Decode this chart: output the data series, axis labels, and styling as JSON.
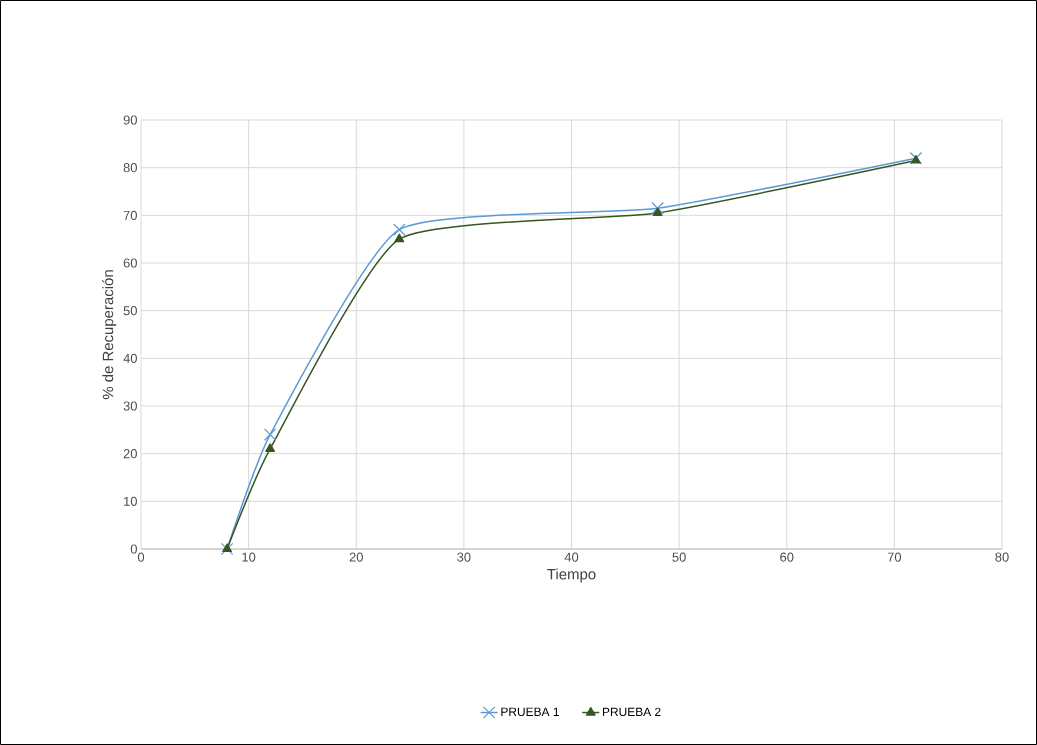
{
  "chart_data": {
    "type": "line",
    "xlabel": "Tiempo",
    "ylabel": "% de Recuperación",
    "x": [
      8,
      12,
      24,
      48,
      72
    ],
    "series": [
      {
        "name": "PRUEBA 1",
        "color": "#5b9bd5",
        "marker": "cross",
        "values": [
          0,
          24,
          67,
          71.5,
          82
        ]
      },
      {
        "name": "PRUEBA 2",
        "color": "#375623",
        "marker": "triangle",
        "values": [
          0,
          21,
          65,
          70.5,
          81.5
        ]
      }
    ],
    "xlim": [
      0,
      80
    ],
    "xticks": [
      0,
      10,
      20,
      30,
      40,
      50,
      60,
      70,
      80
    ],
    "ylim": [
      0,
      90
    ],
    "yticks": [
      0,
      10,
      20,
      30,
      40,
      50,
      60,
      70,
      80,
      90
    ],
    "grid": true,
    "legend": "bottom"
  }
}
